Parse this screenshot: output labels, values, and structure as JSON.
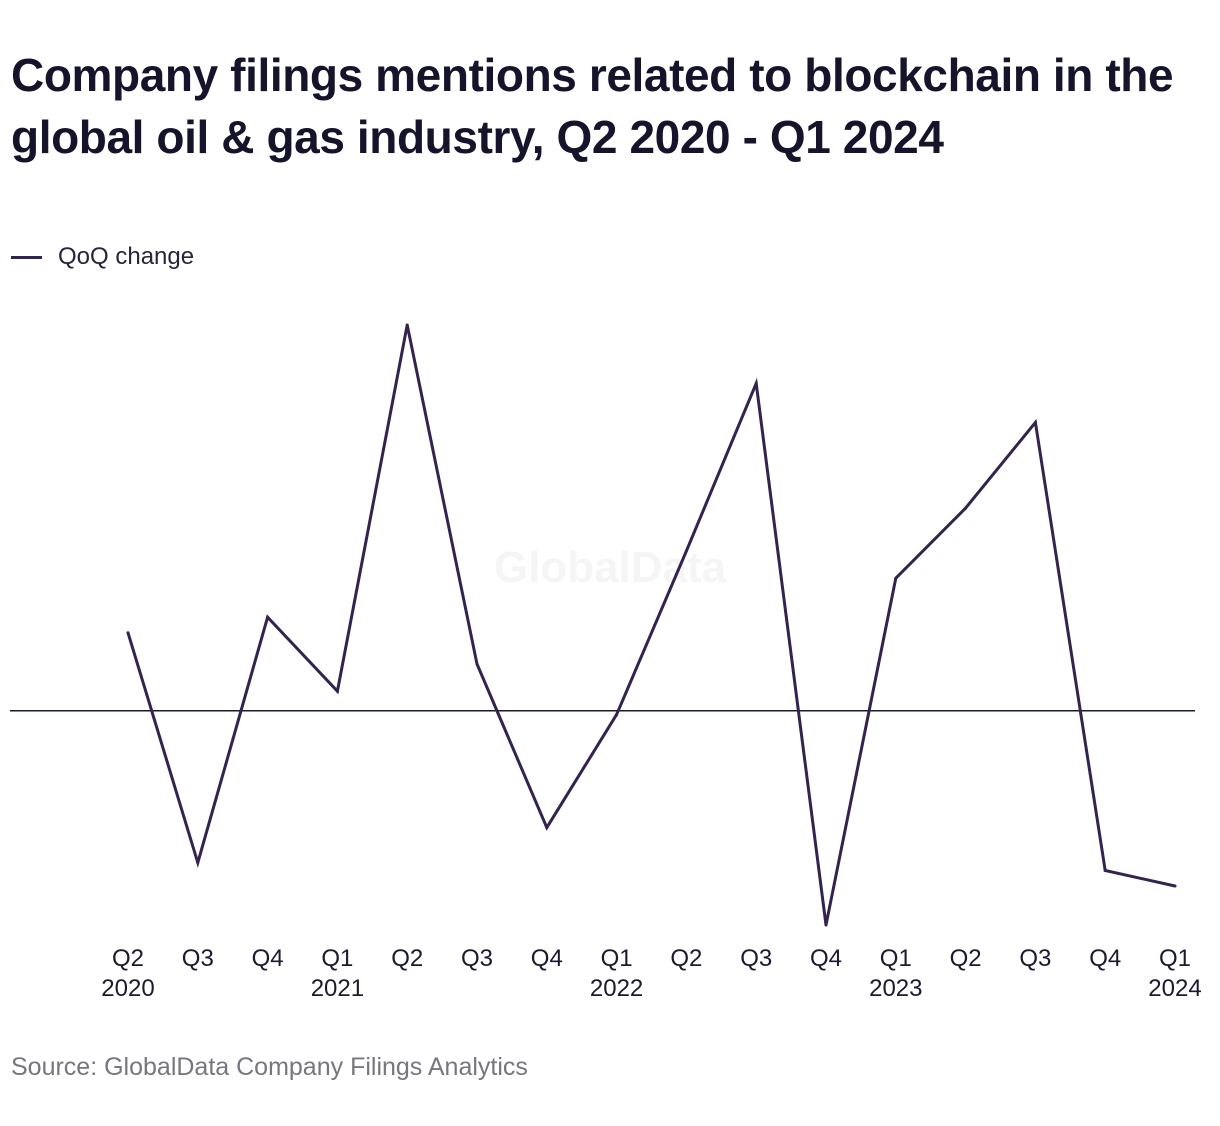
{
  "chart_data": {
    "type": "line",
    "title": "Company filings mentions related to blockchain in the global oil & gas industry, Q2 2020 - Q1 2024",
    "legend": {
      "position": "top-left",
      "entries": [
        "QoQ change"
      ]
    },
    "x": [
      "Q2 2020",
      "Q3 2020",
      "Q4 2020",
      "Q1 2021",
      "Q2 2021",
      "Q3 2021",
      "Q4 2021",
      "Q1 2022",
      "Q2 2022",
      "Q3 2022",
      "Q4 2022",
      "Q1 2023",
      "Q2 2023",
      "Q3 2023",
      "Q4 2023",
      "Q1 2024"
    ],
    "tick_labels": [
      {
        "quarter": "Q2",
        "year": "2020"
      },
      {
        "quarter": "Q3",
        "year": ""
      },
      {
        "quarter": "Q4",
        "year": ""
      },
      {
        "quarter": "Q1",
        "year": "2021"
      },
      {
        "quarter": "Q2",
        "year": ""
      },
      {
        "quarter": "Q3",
        "year": ""
      },
      {
        "quarter": "Q4",
        "year": ""
      },
      {
        "quarter": "Q1",
        "year": "2022"
      },
      {
        "quarter": "Q2",
        "year": ""
      },
      {
        "quarter": "Q3",
        "year": ""
      },
      {
        "quarter": "Q4",
        "year": ""
      },
      {
        "quarter": "Q1",
        "year": "2023"
      },
      {
        "quarter": "Q2",
        "year": ""
      },
      {
        "quarter": "Q3",
        "year": ""
      },
      {
        "quarter": "Q4",
        "year": ""
      },
      {
        "quarter": "Q1",
        "year": "2024"
      }
    ],
    "series": [
      {
        "name": "QoQ change",
        "color": "#34234f",
        "values": [
          20,
          -39,
          24,
          5,
          99,
          12,
          -30,
          -1,
          41,
          84,
          -55,
          34,
          52,
          74,
          -41,
          -45
        ]
      }
    ],
    "ylim": [
      -55,
      99
    ],
    "zero_line": true,
    "grid": false,
    "xlabel": "",
    "ylabel": "",
    "watermark": "GlobalData"
  },
  "source": "Source: GlobalData Company Filings Analytics"
}
